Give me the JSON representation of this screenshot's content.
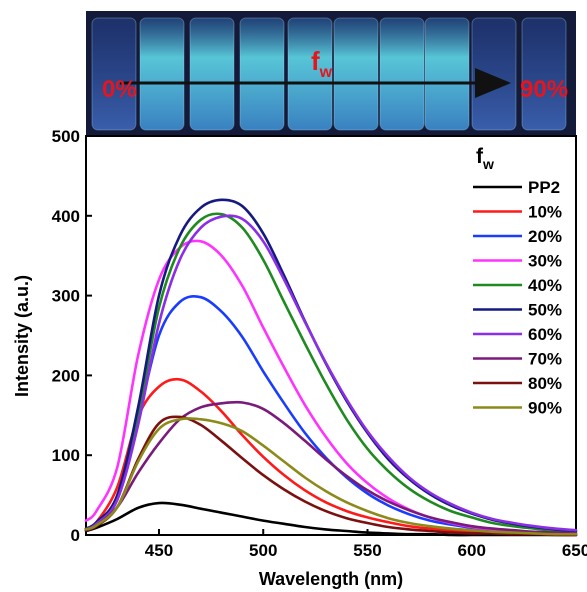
{
  "photo": {
    "start_label": "0%",
    "end_label": "90%",
    "fw_label": {
      "base": "f",
      "sub": "w"
    },
    "label_color": "#e8141c",
    "arrow_color": "#111111",
    "background_color": "#141a3a",
    "glow_color": "#5fd8e8"
  },
  "chart_data": {
    "type": "line",
    "xlabel": "Wavelength (nm)",
    "ylabel": "Intensity (a.u.)",
    "xlim": [
      415,
      650
    ],
    "ylim": [
      0,
      500
    ],
    "xticks": [
      450,
      500,
      550,
      600,
      650
    ],
    "yticks": [
      0,
      100,
      200,
      300,
      400,
      500
    ],
    "grid": false,
    "legend": {
      "title_base": "f",
      "title_sub": "w",
      "placement": "top-right"
    },
    "x": [
      415,
      420,
      430,
      440,
      450,
      460,
      470,
      480,
      490,
      500,
      510,
      520,
      530,
      540,
      550,
      560,
      570,
      580,
      590,
      600,
      610,
      620,
      630,
      640,
      650
    ],
    "series": [
      {
        "name": "PP2",
        "color": "#000000",
        "values": [
          5,
          9,
          20,
          34,
          40,
          38,
          33,
          28,
          23,
          18,
          14,
          10,
          7,
          5,
          3,
          2,
          1,
          1,
          0,
          0,
          0,
          0,
          0,
          0,
          0
        ]
      },
      {
        "name": "10%",
        "color": "#ff1a1a",
        "values": [
          8,
          16,
          60,
          148,
          186,
          195,
          180,
          155,
          125,
          98,
          75,
          56,
          41,
          30,
          22,
          16,
          11,
          8,
          6,
          4,
          3,
          2,
          1,
          1,
          0
        ]
      },
      {
        "name": "20%",
        "color": "#1a3cff",
        "values": [
          6,
          12,
          45,
          145,
          250,
          292,
          298,
          280,
          248,
          205,
          165,
          128,
          97,
          72,
          52,
          37,
          26,
          18,
          13,
          9,
          6,
          4,
          3,
          2,
          1
        ]
      },
      {
        "name": "30%",
        "color": "#ff33ff",
        "values": [
          18,
          30,
          85,
          225,
          320,
          360,
          368,
          350,
          312,
          260,
          210,
          163,
          123,
          90,
          65,
          46,
          32,
          22,
          15,
          10,
          7,
          5,
          3,
          2,
          1
        ]
      },
      {
        "name": "40%",
        "color": "#1f8a1f",
        "values": [
          8,
          15,
          45,
          150,
          285,
          360,
          395,
          402,
          385,
          345,
          292,
          240,
          190,
          145,
          108,
          80,
          58,
          42,
          30,
          22,
          15,
          11,
          8,
          5,
          4
        ]
      },
      {
        "name": "50%",
        "color": "#161a80",
        "values": [
          8,
          16,
          50,
          160,
          300,
          375,
          410,
          420,
          412,
          378,
          325,
          268,
          215,
          168,
          128,
          95,
          70,
          51,
          37,
          27,
          19,
          14,
          10,
          7,
          5
        ]
      },
      {
        "name": "60%",
        "color": "#8c2ee6",
        "values": [
          7,
          14,
          44,
          138,
          265,
          345,
          385,
          399,
          396,
          368,
          320,
          267,
          216,
          170,
          130,
          98,
          72,
          53,
          39,
          28,
          20,
          15,
          11,
          8,
          6
        ]
      },
      {
        "name": "70%",
        "color": "#7a1a7a",
        "values": [
          6,
          12,
          35,
          78,
          115,
          145,
          160,
          165,
          166,
          158,
          140,
          118,
          95,
          74,
          56,
          42,
          31,
          22,
          16,
          11,
          8,
          6,
          4,
          3,
          2
        ]
      },
      {
        "name": "80%",
        "color": "#7a1010",
        "values": [
          6,
          11,
          35,
          95,
          140,
          148,
          138,
          118,
          96,
          75,
          57,
          42,
          30,
          21,
          15,
          10,
          7,
          5,
          3,
          2,
          2,
          1,
          1,
          0,
          0
        ]
      },
      {
        "name": "90%",
        "color": "#8c8a1a",
        "values": [
          7,
          12,
          35,
          92,
          133,
          145,
          145,
          140,
          130,
          112,
          92,
          72,
          55,
          41,
          30,
          21,
          15,
          11,
          8,
          6,
          4,
          3,
          2,
          1,
          1
        ]
      }
    ]
  }
}
